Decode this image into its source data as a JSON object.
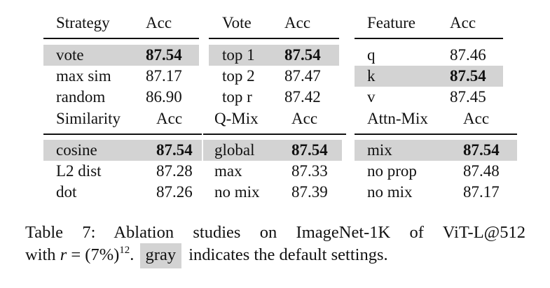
{
  "tables": [
    {
      "id": "strategy",
      "header": [
        "Strategy",
        "Acc"
      ],
      "rows": [
        {
          "label": "vote",
          "acc": "87.54",
          "default": true
        },
        {
          "label": "max sim",
          "acc": "87.17",
          "default": false
        },
        {
          "label": "random",
          "acc": "86.90",
          "default": false
        }
      ]
    },
    {
      "id": "vote",
      "header": [
        "Vote",
        "Acc"
      ],
      "rows": [
        {
          "label": "top 1",
          "acc": "87.54",
          "default": true
        },
        {
          "label": "top 2",
          "acc": "87.47",
          "default": false
        },
        {
          "label": "top r",
          "acc": "87.42",
          "default": false
        }
      ]
    },
    {
      "id": "feature",
      "header": [
        "Feature",
        "Acc"
      ],
      "rows": [
        {
          "label": "q",
          "acc": "87.46",
          "default": false
        },
        {
          "label": "k",
          "acc": "87.54",
          "default": true
        },
        {
          "label": "v",
          "acc": "87.45",
          "default": false
        }
      ]
    },
    {
      "id": "similarity",
      "header": [
        "Similarity",
        "Acc"
      ],
      "rows": [
        {
          "label": "cosine",
          "acc": "87.54",
          "default": true
        },
        {
          "label": "L2 dist",
          "acc": "87.28",
          "default": false
        },
        {
          "label": "dot",
          "acc": "87.26",
          "default": false
        }
      ]
    },
    {
      "id": "qmix",
      "header": [
        "Q-Mix",
        "Acc"
      ],
      "rows": [
        {
          "label": "global",
          "acc": "87.54",
          "default": true
        },
        {
          "label": "max",
          "acc": "87.33",
          "default": false
        },
        {
          "label": "no mix",
          "acc": "87.39",
          "default": false
        }
      ]
    },
    {
      "id": "attnmix",
      "header": [
        "Attn-Mix",
        "Acc"
      ],
      "rows": [
        {
          "label": "mix",
          "acc": "87.54",
          "default": true
        },
        {
          "label": "no prop",
          "acc": "87.48",
          "default": false
        },
        {
          "label": "no mix",
          "acc": "87.17",
          "default": false
        }
      ]
    }
  ],
  "caption": {
    "line1": "Table 7: Ablation studies on ImageNet-1K of ViT-L@512",
    "line2_prefix": "with",
    "math_var": "r",
    "math_eq": " = (7%)",
    "math_exp": "12",
    "line2_period": ".",
    "swatch_label": "gray",
    "line2_suffix": "indicates the default settings.",
    "highlight_color": "#d3d3d3"
  }
}
